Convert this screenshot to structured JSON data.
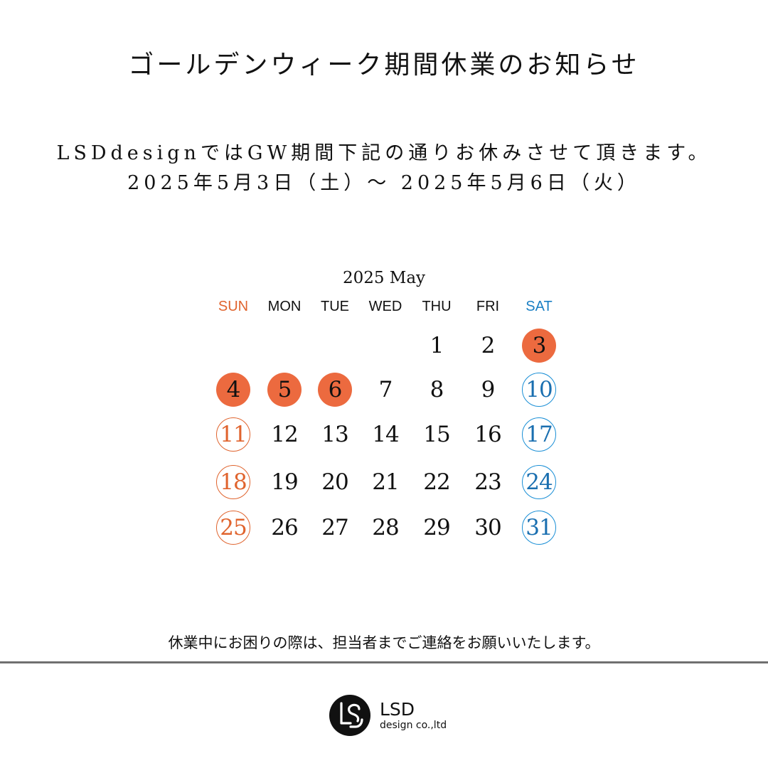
{
  "title": "ゴールデンウィーク期間休業のお知らせ",
  "lead": "LSDdesignではGW期間下記の通りお休みさせて頂きます。",
  "period": "2025年5月3日（土）～ 2025年5月6日（火）",
  "calendar": {
    "month_label": "2025 May",
    "weekdays": [
      "SUN",
      "MON",
      "TUE",
      "WED",
      "THU",
      "FRI",
      "SAT"
    ],
    "first_weekday_index": 4,
    "days_in_month": 31,
    "holidays": [
      3,
      4,
      5,
      6
    ],
    "colors": {
      "holiday_fill": "#ec6a3f",
      "sunday": "#e0642e",
      "saturday": "#1a8fd6"
    }
  },
  "notice": "休業中にお困りの際は、担当者までご連絡をお願いいたします。",
  "logo": {
    "icon": "lsd-logo-mark-icon",
    "main": "LSD",
    "sub": "design co.,ltd"
  }
}
